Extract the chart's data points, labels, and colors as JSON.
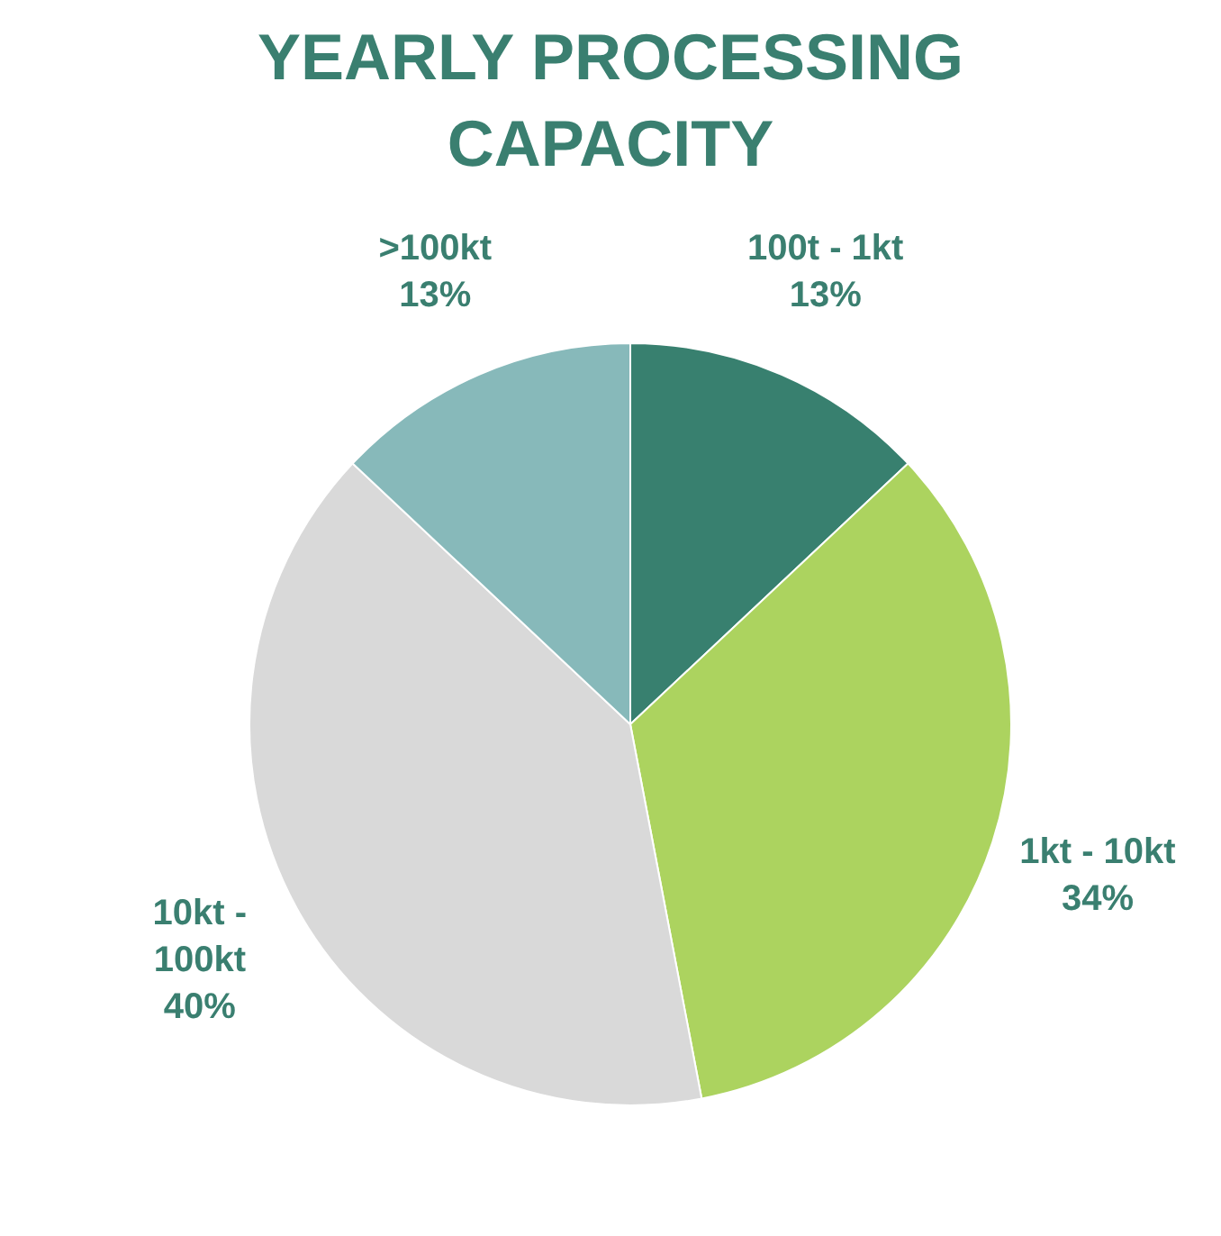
{
  "chart_data": {
    "type": "pie",
    "title": "YEARLY PROCESSING CAPACITY",
    "categories": [
      "100t - 1kt",
      "1kt - 10kt",
      "10kt - 100kt",
      ">100kt"
    ],
    "values": [
      13,
      34,
      40,
      13
    ],
    "value_labels": [
      "13%",
      "34%",
      "40%",
      "13%"
    ],
    "colors": [
      "#38806f",
      "#acd35f",
      "#d9d9d9",
      "#87b9ba"
    ],
    "legend": false
  }
}
